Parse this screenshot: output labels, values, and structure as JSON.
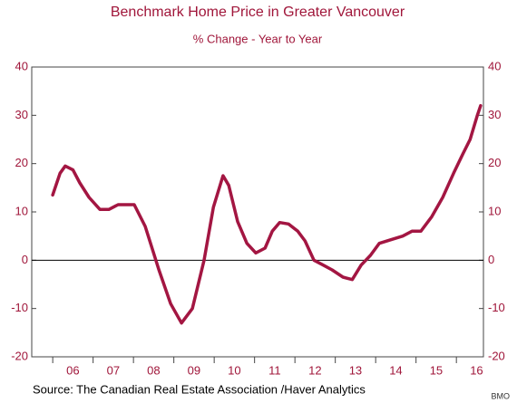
{
  "chart_data": {
    "type": "line",
    "title": "Benchmark Home Price in Greater Vancouver",
    "subtitle": "% Change - Year to Year",
    "source": "Source:  The Canadian Real Estate Association /Haver Analytics",
    "credit": "BMO",
    "x": [
      2006.0,
      2006.18,
      2006.31,
      2006.5,
      2006.67,
      2006.9,
      2007.17,
      2007.39,
      2007.62,
      2007.84,
      2008.02,
      2008.29,
      2008.63,
      2008.92,
      2009.19,
      2009.46,
      2009.75,
      2009.98,
      2010.22,
      2010.36,
      2010.58,
      2010.81,
      2011.03,
      2011.26,
      2011.44,
      2011.62,
      2011.84,
      2012.07,
      2012.25,
      2012.47,
      2012.7,
      2012.92,
      2013.19,
      2013.42,
      2013.64,
      2013.87,
      2014.09,
      2014.36,
      2014.67,
      2014.9,
      2015.12,
      2015.39,
      2015.66,
      2015.93,
      2016.16,
      2016.34,
      2016.52,
      2016.6
    ],
    "series": [
      {
        "name": "Benchmark Home Price",
        "color": "#a31642",
        "values": [
          13.5,
          18,
          19.5,
          18.7,
          16,
          13,
          10.5,
          10.5,
          11.5,
          11.5,
          11.5,
          7,
          -2,
          -9,
          -13,
          -10,
          0,
          11,
          17.5,
          15.5,
          8,
          3.5,
          1.5,
          2.5,
          6,
          7.8,
          7.5,
          6,
          4,
          0,
          -1,
          -2,
          -3.5,
          -4,
          -1,
          1,
          3.5,
          4.2,
          5,
          6,
          6,
          9,
          13,
          18,
          22,
          25,
          30,
          32
        ]
      }
    ],
    "xlim": [
      2005.48,
      2016.67
    ],
    "xticks": [
      2006,
      2007,
      2008,
      2009,
      2010,
      2011,
      2012,
      2013,
      2014,
      2015,
      2016
    ],
    "xtick_labels": [
      {
        "value": 2006.5,
        "label": "06"
      },
      {
        "value": 2007.5,
        "label": "07"
      },
      {
        "value": 2008.5,
        "label": "08"
      },
      {
        "value": 2009.5,
        "label": "09"
      },
      {
        "value": 2010.5,
        "label": "10"
      },
      {
        "value": 2011.5,
        "label": "11"
      },
      {
        "value": 2012.5,
        "label": "12"
      },
      {
        "value": 2013.5,
        "label": "13"
      },
      {
        "value": 2014.5,
        "label": "14"
      },
      {
        "value": 2015.5,
        "label": "15"
      },
      {
        "value": 2016.5,
        "label": "16"
      }
    ],
    "ylim": [
      -20,
      40
    ],
    "yticks": [
      -20,
      -10,
      0,
      10,
      20,
      30,
      40
    ],
    "zero_line": 0
  }
}
